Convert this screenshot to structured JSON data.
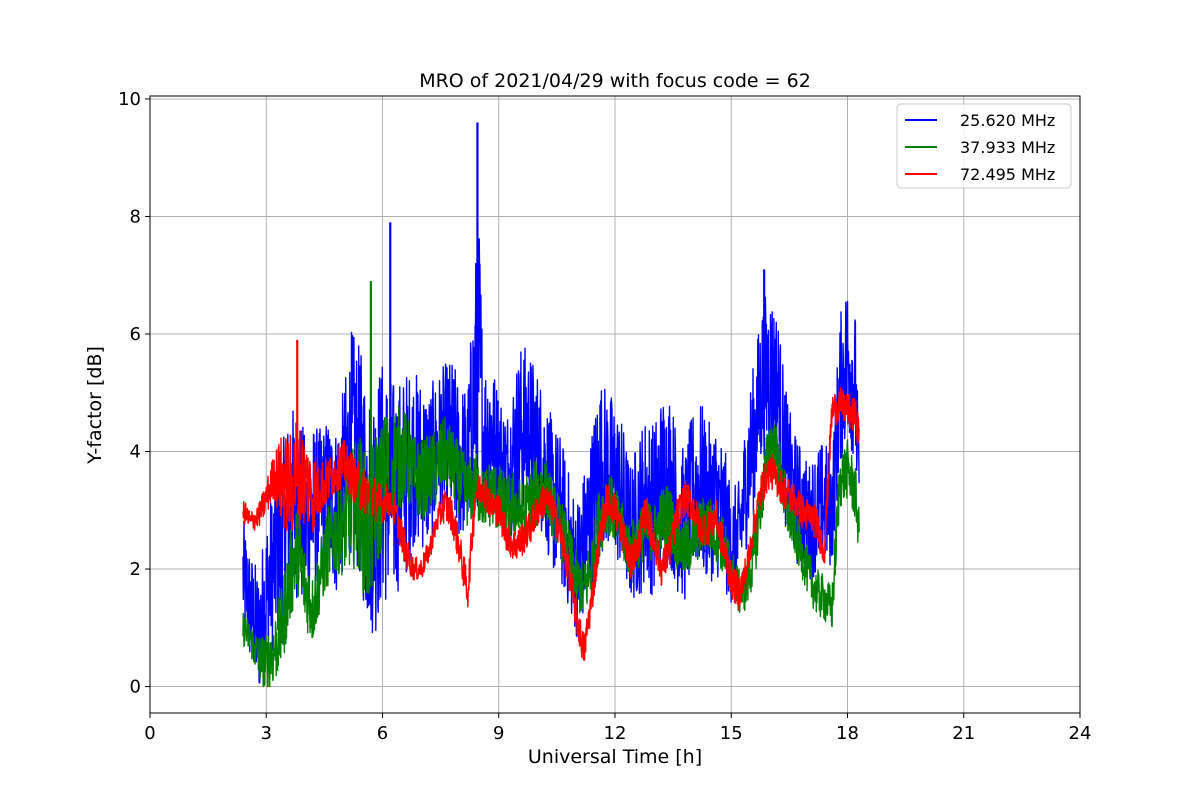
{
  "chart_data": {
    "type": "line",
    "title": "MRO of 2021/04/29 with focus code = 62",
    "xlabel": "Universal Time [h]",
    "ylabel": "Y-factor [dB]",
    "xlim": [
      0,
      24
    ],
    "ylim": [
      -0.45,
      10.05
    ],
    "xticks": [
      0,
      3,
      6,
      9,
      12,
      15,
      18,
      21,
      24
    ],
    "yticks": [
      0,
      2,
      4,
      6,
      8,
      10
    ],
    "grid": true,
    "legend_position": "upper-right",
    "series": [
      {
        "name": "25.620 MHz",
        "color": "#0000ff",
        "x": [
          2.4,
          2.6,
          2.8,
          3.0,
          3.2,
          3.4,
          3.6,
          3.8,
          4.0,
          4.2,
          4.4,
          4.6,
          4.8,
          5.0,
          5.2,
          5.4,
          5.6,
          5.8,
          6.0,
          6.2,
          6.4,
          6.6,
          6.8,
          7.0,
          7.2,
          7.4,
          7.6,
          7.8,
          8.0,
          8.2,
          8.4,
          8.5,
          8.6,
          8.8,
          9.0,
          9.2,
          9.4,
          9.6,
          9.8,
          10.0,
          10.2,
          10.4,
          10.6,
          10.8,
          11.0,
          11.2,
          11.4,
          11.6,
          11.8,
          12.0,
          12.2,
          12.4,
          12.6,
          12.8,
          13.0,
          13.2,
          13.4,
          13.6,
          13.8,
          14.0,
          14.2,
          14.4,
          14.6,
          14.8,
          15.0,
          15.2,
          15.4,
          15.6,
          15.8,
          16.0,
          16.2,
          16.4,
          16.6,
          16.8,
          17.0,
          17.2,
          17.4,
          17.6,
          17.8,
          18.0,
          18.2,
          18.3
        ],
        "y": [
          1.9,
          1.3,
          0.9,
          1.5,
          2.1,
          2.4,
          3.0,
          3.2,
          2.7,
          3.0,
          3.2,
          3.3,
          3.0,
          3.5,
          4.2,
          3.8,
          3.2,
          3.1,
          3.5,
          3.3,
          3.4,
          3.6,
          3.9,
          3.8,
          3.7,
          4.0,
          4.2,
          4.1,
          3.8,
          3.9,
          5.2,
          5.5,
          4.3,
          4.4,
          3.9,
          3.6,
          4.0,
          4.4,
          4.4,
          4.1,
          3.7,
          3.2,
          3.0,
          2.5,
          2.0,
          2.4,
          3.0,
          3.8,
          3.7,
          3.5,
          3.2,
          2.6,
          2.9,
          3.2,
          3.0,
          3.5,
          3.6,
          3.0,
          2.7,
          3.3,
          3.4,
          3.1,
          3.2,
          2.9,
          2.4,
          2.5,
          3.6,
          4.3,
          5.2,
          5.4,
          5.1,
          3.9,
          3.3,
          3.0,
          2.8,
          3.0,
          3.1,
          3.0,
          5.0,
          5.6,
          5.1,
          3.2
        ],
        "amplitude": [
          1.0,
          1.0,
          1.1,
          1.4,
          1.4,
          1.7,
          1.7,
          1.7,
          1.6,
          1.5,
          1.2,
          1.3,
          1.5,
          1.6,
          1.9,
          2.0,
          2.2,
          2.3,
          2.1,
          2.0,
          1.8,
          1.8,
          1.5,
          1.5,
          1.4,
          1.3,
          1.3,
          1.5,
          1.4,
          1.2,
          2.2,
          2.6,
          1.3,
          1.2,
          1.2,
          1.1,
          1.4,
          1.5,
          1.3,
          1.3,
          1.3,
          1.3,
          1.3,
          1.2,
          1.2,
          1.3,
          1.4,
          1.5,
          1.4,
          1.4,
          1.3,
          1.2,
          1.4,
          1.5,
          1.5,
          1.5,
          1.5,
          1.4,
          1.3,
          1.4,
          1.5,
          1.4,
          1.3,
          1.3,
          1.0,
          1.0,
          1.2,
          1.3,
          1.4,
          1.4,
          1.3,
          1.2,
          1.1,
          1.1,
          1.0,
          1.1,
          1.1,
          1.0,
          1.3,
          1.4,
          1.3,
          1.0
        ]
      },
      {
        "name": "37.933 MHz",
        "color": "#008000",
        "x": [
          2.4,
          2.6,
          2.8,
          3.0,
          3.2,
          3.4,
          3.6,
          3.8,
          4.0,
          4.2,
          4.4,
          4.6,
          4.8,
          5.0,
          5.2,
          5.4,
          5.6,
          5.8,
          6.0,
          6.2,
          6.4,
          6.6,
          6.8,
          7.0,
          7.2,
          7.4,
          7.6,
          7.8,
          8.0,
          8.2,
          8.4,
          8.6,
          8.8,
          9.0,
          9.2,
          9.4,
          9.6,
          9.8,
          10.0,
          10.2,
          10.4,
          10.6,
          10.8,
          11.0,
          11.2,
          11.4,
          11.6,
          11.8,
          12.0,
          12.2,
          12.4,
          12.6,
          12.8,
          13.0,
          13.2,
          13.4,
          13.6,
          13.8,
          14.0,
          14.2,
          14.4,
          14.6,
          14.8,
          15.0,
          15.2,
          15.4,
          15.6,
          15.8,
          16.0,
          16.2,
          16.4,
          16.6,
          16.8,
          17.0,
          17.2,
          17.4,
          17.6,
          17.8,
          18.0,
          18.2,
          18.3
        ],
        "y": [
          1.0,
          0.8,
          0.5,
          0.4,
          0.6,
          1.0,
          1.8,
          2.4,
          1.7,
          1.3,
          1.9,
          2.4,
          2.6,
          2.7,
          3.0,
          3.2,
          2.5,
          3.0,
          3.5,
          3.8,
          3.9,
          3.9,
          3.6,
          3.5,
          3.6,
          3.7,
          4.0,
          3.8,
          3.5,
          3.3,
          3.4,
          3.2,
          3.3,
          3.2,
          3.0,
          3.1,
          2.9,
          3.1,
          3.3,
          3.4,
          3.0,
          2.7,
          2.3,
          1.8,
          1.6,
          2.1,
          2.8,
          3.2,
          2.9,
          2.6,
          2.3,
          2.5,
          2.7,
          2.6,
          2.8,
          2.9,
          2.5,
          2.3,
          2.5,
          2.7,
          2.8,
          2.6,
          2.4,
          2.0,
          1.6,
          1.7,
          2.3,
          3.3,
          4.2,
          3.9,
          3.1,
          2.7,
          2.3,
          1.9,
          1.6,
          1.5,
          1.3,
          3.5,
          3.7,
          3.3,
          2.6
        ],
        "amplitude": [
          0.3,
          0.3,
          0.4,
          0.5,
          0.6,
          0.7,
          0.8,
          0.8,
          0.7,
          0.6,
          0.6,
          0.7,
          0.7,
          0.8,
          1.0,
          1.2,
          1.3,
          1.3,
          1.1,
          1.0,
          0.9,
          0.8,
          0.7,
          0.7,
          0.7,
          0.7,
          0.6,
          0.6,
          0.6,
          0.6,
          0.6,
          0.5,
          0.6,
          0.6,
          0.6,
          0.6,
          0.6,
          0.6,
          0.6,
          0.5,
          0.5,
          0.5,
          0.5,
          0.5,
          0.5,
          0.6,
          0.6,
          0.6,
          0.5,
          0.5,
          0.5,
          0.5,
          0.5,
          0.5,
          0.6,
          0.6,
          0.5,
          0.5,
          0.5,
          0.5,
          0.5,
          0.5,
          0.5,
          0.4,
          0.4,
          0.4,
          0.5,
          0.5,
          0.5,
          0.5,
          0.5,
          0.4,
          0.4,
          0.4,
          0.4,
          0.4,
          0.4,
          0.5,
          0.5,
          0.5,
          0.4
        ]
      },
      {
        "name": "72.495 MHz",
        "color": "#ff0000",
        "x": [
          2.4,
          2.6,
          2.8,
          3.0,
          3.2,
          3.4,
          3.6,
          3.8,
          4.0,
          4.2,
          4.4,
          4.6,
          4.8,
          5.0,
          5.2,
          5.4,
          5.6,
          5.8,
          6.0,
          6.2,
          6.4,
          6.6,
          6.8,
          7.0,
          7.2,
          7.4,
          7.6,
          7.8,
          8.0,
          8.2,
          8.4,
          8.6,
          8.8,
          9.0,
          9.2,
          9.4,
          9.6,
          9.8,
          10.0,
          10.2,
          10.4,
          10.6,
          10.8,
          11.0,
          11.2,
          11.4,
          11.6,
          11.8,
          12.0,
          12.2,
          12.4,
          12.6,
          12.8,
          13.0,
          13.2,
          13.4,
          13.6,
          13.8,
          14.0,
          14.2,
          14.4,
          14.6,
          14.8,
          15.0,
          15.2,
          15.4,
          15.6,
          15.8,
          16.0,
          16.2,
          16.4,
          16.6,
          16.8,
          17.0,
          17.2,
          17.4,
          17.6,
          17.8,
          18.0,
          18.2,
          18.3
        ],
        "y": [
          3.0,
          2.8,
          2.9,
          3.2,
          3.6,
          3.5,
          3.4,
          3.6,
          3.5,
          3.3,
          3.4,
          3.5,
          3.7,
          3.8,
          3.6,
          3.4,
          3.3,
          3.2,
          3.1,
          3.2,
          2.8,
          2.3,
          2.0,
          2.0,
          2.3,
          2.8,
          3.1,
          2.9,
          2.3,
          1.6,
          3.3,
          3.4,
          3.1,
          3.0,
          2.6,
          2.4,
          2.5,
          2.7,
          3.0,
          3.2,
          3.0,
          2.6,
          2.0,
          1.2,
          0.6,
          1.5,
          2.5,
          3.2,
          3.0,
          2.6,
          2.1,
          2.4,
          3.0,
          2.5,
          2.0,
          2.3,
          2.9,
          3.2,
          3.1,
          2.7,
          2.7,
          2.9,
          2.4,
          1.8,
          1.6,
          2.0,
          2.8,
          3.4,
          3.7,
          3.5,
          3.3,
          3.2,
          3.0,
          2.9,
          2.8,
          2.3,
          4.7,
          4.8,
          4.7,
          4.6,
          4.3
        ],
        "amplitude": [
          0.2,
          0.2,
          0.2,
          0.3,
          0.4,
          0.8,
          0.9,
          0.9,
          0.8,
          0.7,
          0.5,
          0.4,
          0.4,
          0.4,
          0.4,
          0.4,
          0.4,
          0.4,
          0.3,
          0.3,
          0.3,
          0.3,
          0.2,
          0.2,
          0.2,
          0.2,
          0.3,
          0.3,
          0.3,
          0.3,
          0.3,
          0.3,
          0.3,
          0.3,
          0.3,
          0.3,
          0.3,
          0.3,
          0.3,
          0.3,
          0.3,
          0.3,
          0.3,
          0.3,
          0.3,
          0.3,
          0.3,
          0.3,
          0.3,
          0.3,
          0.3,
          0.3,
          0.3,
          0.3,
          0.3,
          0.3,
          0.3,
          0.3,
          0.3,
          0.3,
          0.3,
          0.3,
          0.3,
          0.3,
          0.3,
          0.3,
          0.3,
          0.3,
          0.3,
          0.3,
          0.3,
          0.3,
          0.3,
          0.3,
          0.3,
          0.3,
          0.3,
          0.3,
          0.3,
          0.3,
          0.3
        ]
      }
    ],
    "spikes": [
      {
        "series": "25.620 MHz",
        "x": 8.45,
        "y": 9.6
      },
      {
        "series": "25.620 MHz",
        "x": 6.2,
        "y": 7.9
      },
      {
        "series": "25.620 MHz",
        "x": 15.85,
        "y": 7.1
      },
      {
        "series": "37.933 MHz",
        "x": 5.7,
        "y": 6.9
      },
      {
        "series": "72.495 MHz",
        "x": 3.8,
        "y": 5.9
      }
    ]
  }
}
